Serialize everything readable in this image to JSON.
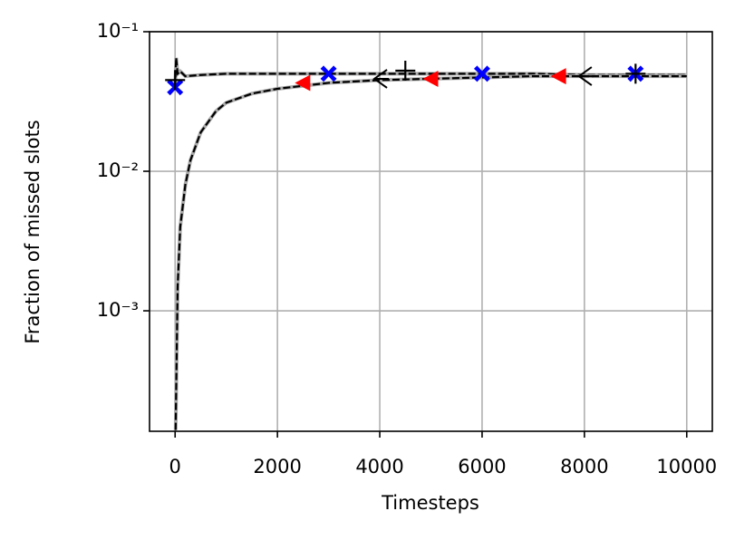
{
  "chart_data": {
    "type": "line",
    "x_label": "Timesteps",
    "y_label": "Fraction of missed slots",
    "xlim": [
      -500,
      10500
    ],
    "ylim": [
      0.000137,
      0.1
    ],
    "log_y": true,
    "grid": true,
    "xticks": [
      0,
      2000,
      4000,
      6000,
      8000,
      10000
    ],
    "yticks": [
      {
        "value": 0.1,
        "label": "10⁻¹"
      },
      {
        "value": 0.01,
        "label": "10⁻²"
      },
      {
        "value": 0.001,
        "label": "10⁻³"
      }
    ],
    "series": [
      {
        "color": "#000000",
        "under_color": "#aaaaaa",
        "marker": "none",
        "x": [
          0,
          20,
          50,
          100,
          200,
          500,
          1000,
          2000,
          3000,
          4000,
          5000,
          6000,
          7000,
          8000,
          9000,
          10000
        ],
        "values": [
          0.04,
          0.065,
          0.05,
          0.052,
          0.048,
          0.049,
          0.05,
          0.05,
          0.05,
          0.05,
          0.05,
          0.05,
          0.05,
          0.049,
          0.049,
          0.049
        ]
      },
      {
        "color": "#000000",
        "under_color": "#aaaaaa",
        "marker": "none",
        "x": [
          10,
          50,
          100,
          200,
          300,
          500,
          800,
          1000,
          1500,
          2000,
          3000,
          4000,
          5000,
          6000,
          7000,
          8000,
          9000,
          10000
        ],
        "values": [
          0.00014,
          0.0015,
          0.004,
          0.008,
          0.012,
          0.019,
          0.027,
          0.031,
          0.036,
          0.039,
          0.043,
          0.045,
          0.046,
          0.047,
          0.048,
          0.048,
          0.048,
          0.048
        ]
      },
      {
        "color": "#0000ff",
        "marker": "X",
        "x": [
          0,
          3000,
          6000,
          9000
        ],
        "values": [
          0.04,
          0.05,
          0.05,
          0.05
        ]
      },
      {
        "color": "#ff0000",
        "marker": "<",
        "x": [
          2500,
          5000,
          7500
        ],
        "values": [
          0.043,
          0.046,
          0.048
        ]
      },
      {
        "color": "#000000",
        "marker": "4",
        "x": [
          4000,
          8000
        ],
        "values": [
          0.046,
          0.048
        ]
      },
      {
        "color": "#000000",
        "marker": "+",
        "x": [
          0,
          4500,
          9000
        ],
        "values": [
          0.045,
          0.0526,
          0.05
        ]
      }
    ]
  }
}
